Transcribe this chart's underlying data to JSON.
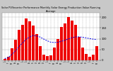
{
  "title": "Solar PV/Inverter Performance Monthly Solar Energy Production Value Running Average",
  "bar_values": [
    8,
    18,
    55,
    95,
    140,
    165,
    195,
    180,
    160,
    120,
    65,
    25,
    20,
    22,
    60,
    100,
    155,
    170,
    200,
    185,
    165,
    110,
    60,
    28,
    18,
    25,
    65
  ],
  "running_avg": [
    8,
    13,
    27,
    44,
    63.2,
    80.2,
    96.9,
    107.8,
    115.2,
    113.2,
    107.4,
    98.4,
    90.2,
    83.9,
    82.5,
    83.6,
    88.5,
    93.3,
    99.5,
    104.8,
    108.8,
    108.5,
    106.7,
    103.8,
    100.4,
    97.8,
    96.5
  ],
  "bar_color": "#ee0000",
  "avg_color": "#0000ee",
  "background_color": "#c8c8c8",
  "plot_bg_color": "#ffffff",
  "ylim": [
    0,
    220
  ],
  "ytick_values": [
    0,
    50,
    100,
    150,
    200
  ],
  "ytick_labels": [
    "0",
    "50",
    "100",
    "150",
    "200"
  ],
  "grid_color": "#aaaaaa",
  "figwidth": 1.6,
  "figheight": 1.0,
  "dpi": 100
}
